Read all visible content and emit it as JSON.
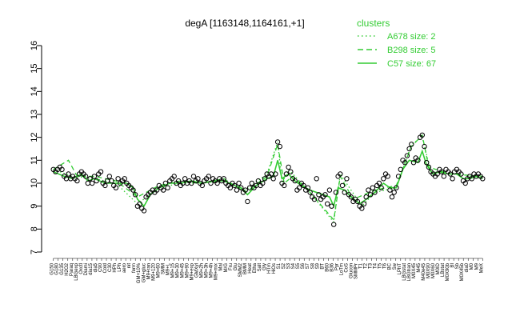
{
  "chart_data": {
    "type": "line",
    "title": "degA [1163148,1164161,+1]",
    "xlabel": "",
    "ylabel": "",
    "ylim": [
      7,
      16
    ],
    "yticks": [
      7,
      8,
      9,
      10,
      11,
      12,
      13,
      14,
      15,
      16
    ],
    "grid": false,
    "legend": {
      "title": "clusters",
      "placement": "top-right",
      "entries": [
        {
          "label": "A678 size: 2",
          "style": "dotted"
        },
        {
          "label": "B298 size: 5",
          "style": "dashed"
        },
        {
          "label": "C57 size: 67",
          "style": "solid"
        }
      ]
    },
    "colors": {
      "points": "#000000",
      "lines": "#33cc33"
    },
    "x_labels": [
      "G150",
      "G180",
      "G135",
      "H2O2",
      "Paraq",
      "LBGexp",
      "Oxctl",
      "Diami",
      "dia15",
      "dia5",
      "C90",
      "Cold",
      "C30",
      "HPh",
      "LPh",
      "aero",
      "nit",
      "ferm",
      "GM+10%",
      "GM+gluc",
      "M9+ran",
      "M9+120",
      "M9+60",
      "SMM",
      "M9+L",
      "M9+15",
      "M9+30",
      "M9+45",
      "M9+90",
      "M9+exp",
      "GMXyl",
      "M9+2h",
      "M9+3h",
      "M9+4h",
      "M9+mix",
      "Mal",
      "M/G",
      "Fru",
      "Glu",
      "SMM2",
      "BMM",
      "Heat",
      "Etha",
      "Salt",
      "Gly",
      "HTm",
      "HiOs",
      "S1",
      "S2",
      "S3",
      "S4",
      "S5",
      "S6",
      "S7",
      "S8",
      "S9",
      "BT",
      "B60",
      "B36",
      "Pyr",
      "LoTm",
      "CoS",
      "Glucon",
      "SMMPr",
      "T1",
      "T2",
      "T3",
      "T4",
      "T5",
      "T6",
      "BC",
      "Sw",
      "LPhT",
      "LBGstat",
      "LBGtran",
      "M0X45",
      "M45",
      "M40e45",
      "M0X90",
      "M0X60",
      "M0ID",
      "LBstat",
      "M0X90b",
      "BI",
      "Sb",
      "M0X45b",
      "dia0",
      "M0",
      "M9",
      "MeX"
    ],
    "tick_labels": [
      "G150",
      "G180",
      "G135",
      "H2O2",
      "Paraq",
      "LBGexp",
      "Oxctl",
      "Diami",
      "dia15",
      "dia5",
      "C90",
      "Cold",
      "C30",
      "HPh",
      "LPh",
      "aero",
      "nit",
      "ferm",
      "GM+10%",
      "GM+gluc",
      "M9+ran",
      "M9+120",
      "M9+60",
      "SMM",
      "M9+L",
      "M9+15",
      "M9+30",
      "M9+45",
      "M9+90",
      "M9+exp",
      "GMXyl",
      "M9+2h",
      "M9+3h",
      "M9+4h",
      "M9+mix",
      "Mal",
      "M/G",
      "Fru",
      "Glu",
      "SMM2",
      "BMM",
      "Heat",
      "Etha",
      "Salt",
      "Gly",
      "HTm",
      "HiOs",
      "S1",
      "S2",
      "S3",
      "S4",
      "S5",
      "S6",
      "S7",
      "S8",
      "S9",
      "BT",
      "B60",
      "B36",
      "Pyr",
      "LoTm",
      "CoS",
      "Glucon",
      "SMMPr",
      "T1",
      "T2",
      "T3",
      "T4",
      "T5",
      "T6",
      "BC",
      "Sw",
      "LPhT",
      "LBGstat",
      "LBGtran",
      "M0X45",
      "M45",
      "M40e45",
      "M0X90",
      "M0X60",
      "M0ID",
      "LBstat",
      "M0X90b",
      "BI",
      "Sb",
      "M0X45b",
      "dia0",
      "M0",
      "M9",
      "MeX"
    ],
    "points": [
      [
        1,
        10.6
      ],
      [
        2,
        10.5
      ],
      [
        3,
        10.6
      ],
      [
        4,
        10.7
      ],
      [
        5,
        10.6
      ],
      [
        6,
        10.3
      ],
      [
        7,
        10.2
      ],
      [
        8,
        10.4
      ],
      [
        9,
        10.2
      ],
      [
        10,
        10.3
      ],
      [
        11,
        10.2
      ],
      [
        12,
        10.1
      ],
      [
        13,
        10.4
      ],
      [
        14,
        10.5
      ],
      [
        15,
        10.4
      ],
      [
        16,
        10.3
      ],
      [
        17,
        10.0
      ],
      [
        18,
        10.2
      ],
      [
        19,
        10.0
      ],
      [
        20,
        10.3
      ],
      [
        21,
        10.1
      ],
      [
        22,
        10.4
      ],
      [
        23,
        10.5
      ],
      [
        24,
        10.0
      ],
      [
        25,
        9.9
      ],
      [
        26,
        10.1
      ],
      [
        27,
        10.3
      ],
      [
        28,
        10.1
      ],
      [
        29,
        9.9
      ],
      [
        30,
        9.8
      ],
      [
        31,
        10.2
      ],
      [
        32,
        10.0
      ],
      [
        33,
        10.1
      ],
      [
        34,
        10.2
      ],
      [
        35,
        10.0
      ],
      [
        36,
        9.9
      ],
      [
        37,
        9.8
      ],
      [
        38,
        9.7
      ],
      [
        39,
        9.5
      ],
      [
        40,
        9.0
      ],
      [
        41,
        9.1
      ],
      [
        42,
        8.9
      ],
      [
        43,
        8.8
      ],
      [
        44,
        9.4
      ],
      [
        45,
        9.5
      ],
      [
        46,
        9.6
      ],
      [
        47,
        9.7
      ],
      [
        48,
        9.6
      ],
      [
        49,
        9.7
      ],
      [
        50,
        9.9
      ],
      [
        51,
        9.8
      ],
      [
        52,
        9.7
      ],
      [
        53,
        10.0
      ],
      [
        54,
        9.8
      ],
      [
        55,
        10.1
      ],
      [
        56,
        10.2
      ],
      [
        57,
        10.3
      ],
      [
        58,
        10.0
      ],
      [
        59,
        10.1
      ],
      [
        60,
        9.9
      ],
      [
        61,
        10.0
      ],
      [
        62,
        10.2
      ],
      [
        63,
        10.0
      ],
      [
        64,
        10.1
      ],
      [
        65,
        10.0
      ],
      [
        66,
        10.3
      ],
      [
        67,
        10.1
      ],
      [
        68,
        10.2
      ],
      [
        69,
        10.0
      ],
      [
        70,
        9.9
      ],
      [
        71,
        10.1
      ],
      [
        72,
        10.2
      ],
      [
        73,
        10.3
      ],
      [
        74,
        10.0
      ],
      [
        75,
        10.2
      ],
      [
        76,
        10.1
      ],
      [
        77,
        10.0
      ],
      [
        78,
        10.2
      ],
      [
        79,
        10.1
      ],
      [
        80,
        10.2
      ],
      [
        81,
        10.0
      ],
      [
        82,
        9.9
      ],
      [
        83,
        9.8
      ],
      [
        84,
        10.0
      ],
      [
        85,
        9.9
      ],
      [
        86,
        9.7
      ],
      [
        87,
        10.0
      ],
      [
        88,
        9.8
      ],
      [
        89,
        9.6
      ],
      [
        90,
        9.7
      ],
      [
        91,
        9.2
      ],
      [
        92,
        9.8
      ],
      [
        93,
        10.0
      ],
      [
        94,
        9.8
      ],
      [
        95,
        9.9
      ],
      [
        96,
        10.1
      ],
      [
        97,
        9.9
      ],
      [
        98,
        10.0
      ],
      [
        99,
        10.2
      ],
      [
        100,
        10.4
      ],
      [
        101,
        10.3
      ],
      [
        102,
        10.4
      ],
      [
        103,
        10.2
      ],
      [
        104,
        10.4
      ],
      [
        105,
        11.8
      ],
      [
        106,
        11.6
      ],
      [
        107,
        10.0
      ],
      [
        108,
        9.9
      ],
      [
        109,
        10.4
      ],
      [
        110,
        10.7
      ],
      [
        111,
        10.5
      ],
      [
        112,
        10.2
      ],
      [
        113,
        10.1
      ],
      [
        114,
        9.7
      ],
      [
        115,
        9.8
      ],
      [
        116,
        10.0
      ],
      [
        117,
        9.9
      ],
      [
        118,
        9.7
      ],
      [
        119,
        9.8
      ],
      [
        120,
        9.6
      ],
      [
        121,
        9.4
      ],
      [
        122,
        9.3
      ],
      [
        123,
        10.2
      ],
      [
        124,
        9.5
      ],
      [
        125,
        9.3
      ],
      [
        126,
        9.4
      ],
      [
        127,
        9.5
      ],
      [
        128,
        9.1
      ],
      [
        129,
        9.7
      ],
      [
        130,
        9.0
      ],
      [
        131,
        8.2
      ],
      [
        132,
        9.6
      ],
      [
        133,
        10.3
      ],
      [
        134,
        10.4
      ],
      [
        135,
        9.9
      ],
      [
        136,
        9.6
      ],
      [
        137,
        10.2
      ],
      [
        138,
        9.5
      ],
      [
        139,
        9.4
      ],
      [
        140,
        9.2
      ],
      [
        141,
        9.3
      ],
      [
        142,
        9.2
      ],
      [
        143,
        9.0
      ],
      [
        144,
        8.9
      ],
      [
        145,
        9.1
      ],
      [
        146,
        9.4
      ],
      [
        147,
        9.7
      ],
      [
        148,
        9.5
      ],
      [
        149,
        9.8
      ],
      [
        150,
        9.6
      ],
      [
        151,
        9.9
      ],
      [
        152,
        10.0
      ],
      [
        153,
        9.8
      ],
      [
        154,
        10.2
      ],
      [
        155,
        10.4
      ],
      [
        156,
        10.3
      ],
      [
        157,
        9.7
      ],
      [
        158,
        9.4
      ],
      [
        159,
        9.6
      ],
      [
        160,
        9.8
      ],
      [
        161,
        10.3
      ],
      [
        162,
        10.6
      ],
      [
        163,
        11.0
      ],
      [
        164,
        10.9
      ],
      [
        165,
        11.2
      ],
      [
        166,
        11.5
      ],
      [
        167,
        11.7
      ],
      [
        168,
        10.9
      ],
      [
        169,
        11.1
      ],
      [
        170,
        11.0
      ],
      [
        171,
        12.0
      ],
      [
        172,
        12.1
      ],
      [
        173,
        11.6
      ],
      [
        174,
        10.9
      ],
      [
        175,
        10.7
      ],
      [
        176,
        10.5
      ],
      [
        177,
        10.4
      ],
      [
        178,
        10.3
      ],
      [
        179,
        10.4
      ],
      [
        180,
        10.6
      ],
      [
        181,
        10.5
      ],
      [
        182,
        10.3
      ],
      [
        183,
        10.6
      ],
      [
        184,
        10.5
      ],
      [
        185,
        10.4
      ],
      [
        186,
        10.2
      ],
      [
        187,
        10.5
      ],
      [
        188,
        10.6
      ],
      [
        189,
        10.5
      ],
      [
        190,
        10.4
      ],
      [
        191,
        10.1
      ],
      [
        192,
        10.0
      ],
      [
        193,
        10.2
      ],
      [
        194,
        10.3
      ],
      [
        195,
        10.2
      ],
      [
        196,
        10.4
      ],
      [
        197,
        10.3
      ],
      [
        198,
        10.4
      ],
      [
        199,
        10.3
      ],
      [
        200,
        10.2
      ]
    ],
    "xlim": [
      0,
      201
    ],
    "series": [
      {
        "style": "solid",
        "values_at": [
          [
            1,
            10.5
          ],
          [
            6,
            10.3
          ],
          [
            10,
            10.2
          ],
          [
            14,
            10.4
          ],
          [
            17,
            10.1
          ],
          [
            20,
            10.2
          ],
          [
            25,
            10.0
          ],
          [
            30,
            10.0
          ],
          [
            35,
            10.0
          ],
          [
            38,
            9.8
          ],
          [
            40,
            9.3
          ],
          [
            43,
            9.0
          ],
          [
            46,
            9.5
          ],
          [
            50,
            9.8
          ],
          [
            55,
            10.0
          ],
          [
            60,
            10.0
          ],
          [
            65,
            10.1
          ],
          [
            70,
            10.0
          ],
          [
            75,
            10.1
          ],
          [
            80,
            10.1
          ],
          [
            85,
            9.9
          ],
          [
            88,
            9.8
          ],
          [
            91,
            9.5
          ],
          [
            95,
            9.9
          ],
          [
            100,
            10.2
          ],
          [
            103,
            10.3
          ],
          [
            105,
            11.0
          ],
          [
            107,
            10.2
          ],
          [
            110,
            10.4
          ],
          [
            113,
            10.1
          ],
          [
            116,
            9.9
          ],
          [
            120,
            9.7
          ],
          [
            123,
            9.6
          ],
          [
            126,
            9.5
          ],
          [
            129,
            9.4
          ],
          [
            131,
            9.0
          ],
          [
            133,
            9.8
          ],
          [
            136,
            9.7
          ],
          [
            139,
            9.4
          ],
          [
            143,
            9.1
          ],
          [
            146,
            9.3
          ],
          [
            150,
            9.6
          ],
          [
            154,
            10.0
          ],
          [
            157,
            9.8
          ],
          [
            160,
            9.8
          ],
          [
            163,
            10.6
          ],
          [
            166,
            11.0
          ],
          [
            170,
            10.9
          ],
          [
            172,
            11.4
          ],
          [
            174,
            10.8
          ],
          [
            177,
            10.4
          ],
          [
            180,
            10.5
          ],
          [
            184,
            10.4
          ],
          [
            188,
            10.4
          ],
          [
            191,
            10.2
          ],
          [
            194,
            10.2
          ],
          [
            197,
            10.3
          ],
          [
            200,
            10.2
          ]
        ]
      },
      {
        "style": "dashed",
        "values_at": [
          [
            1,
            10.6
          ],
          [
            8,
            11.0
          ],
          [
            12,
            10.3
          ],
          [
            20,
            10.3
          ],
          [
            30,
            10.1
          ],
          [
            40,
            9.4
          ],
          [
            50,
            9.9
          ],
          [
            60,
            10.1
          ],
          [
            70,
            10.0
          ],
          [
            80,
            10.2
          ],
          [
            90,
            9.6
          ],
          [
            100,
            10.3
          ],
          [
            105,
            11.7
          ],
          [
            108,
            10.0
          ],
          [
            112,
            10.3
          ],
          [
            120,
            9.6
          ],
          [
            131,
            8.4
          ],
          [
            134,
            10.3
          ],
          [
            140,
            9.3
          ],
          [
            150,
            9.7
          ],
          [
            160,
            9.9
          ],
          [
            167,
            11.6
          ],
          [
            172,
            12.1
          ],
          [
            175,
            10.7
          ],
          [
            185,
            10.4
          ],
          [
            200,
            10.3
          ]
        ]
      },
      {
        "style": "dotted",
        "values_at": [
          [
            1,
            10.6
          ],
          [
            10,
            10.3
          ],
          [
            20,
            10.2
          ],
          [
            30,
            10.0
          ],
          [
            40,
            9.1
          ],
          [
            50,
            9.8
          ],
          [
            60,
            10.0
          ],
          [
            70,
            10.0
          ],
          [
            80,
            10.1
          ],
          [
            90,
            9.7
          ],
          [
            100,
            10.4
          ],
          [
            105,
            11.8
          ],
          [
            107,
            10.0
          ],
          [
            110,
            10.6
          ],
          [
            120,
            9.6
          ],
          [
            131,
            8.3
          ],
          [
            134,
            10.4
          ],
          [
            144,
            9.0
          ],
          [
            150,
            9.6
          ],
          [
            160,
            9.8
          ],
          [
            167,
            11.7
          ],
          [
            172,
            12.0
          ],
          [
            176,
            10.5
          ],
          [
            190,
            10.4
          ],
          [
            200,
            10.2
          ]
        ]
      }
    ]
  }
}
